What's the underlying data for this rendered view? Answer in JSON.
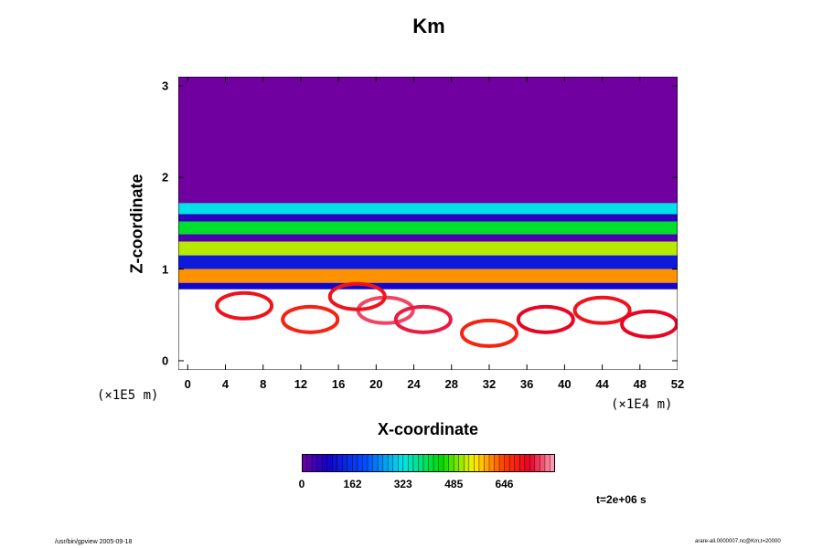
{
  "chart_data": {
    "type": "heatmap",
    "title": "Km",
    "xlabel": "X-coordinate",
    "ylabel": "Z-coordinate",
    "x_unit": "(×1E4 m)",
    "y_unit": "(×1E5 m)",
    "x_ticks": [
      "0",
      "4",
      "8",
      "12",
      "16",
      "20",
      "24",
      "28",
      "32",
      "36",
      "40",
      "44",
      "48",
      "52"
    ],
    "y_ticks": [
      "0",
      "1",
      "2",
      "3"
    ],
    "xlim": [
      -1,
      52
    ],
    "ylim": [
      -0.1,
      3.1
    ],
    "colorbar": {
      "ticks": [
        "0",
        "162",
        "323",
        "485",
        "646"
      ],
      "range": [
        0,
        808
      ]
    },
    "time_label": "t=2e+06 s",
    "bands": [
      {
        "z_min": 1.72,
        "z_max": 3.1,
        "value": 0
      },
      {
        "z_min": 1.6,
        "z_max": 1.72,
        "value": 320
      },
      {
        "z_min": 1.52,
        "z_max": 1.6,
        "value": 60
      },
      {
        "z_min": 1.38,
        "z_max": 1.52,
        "value": 420
      },
      {
        "z_min": 1.3,
        "z_max": 1.38,
        "value": 30
      },
      {
        "z_min": 1.15,
        "z_max": 1.3,
        "value": 520
      },
      {
        "z_min": 1.0,
        "z_max": 1.15,
        "value": 120
      },
      {
        "z_min": 0.85,
        "z_max": 1.0,
        "value": 600
      },
      {
        "z_min": 0.78,
        "z_max": 0.85,
        "value": 90
      }
    ],
    "features": [
      {
        "x": 21,
        "z": 0.55,
        "value": 760
      },
      {
        "x": 18,
        "z": 0.7,
        "value": 700
      },
      {
        "x": 25,
        "z": 0.45,
        "value": 740
      },
      {
        "x": 38,
        "z": 0.45,
        "value": 720
      },
      {
        "x": 44,
        "z": 0.55,
        "value": 700
      },
      {
        "x": 49,
        "z": 0.4,
        "value": 720
      },
      {
        "x": 6,
        "z": 0.6,
        "value": 700
      },
      {
        "x": 13,
        "z": 0.45,
        "value": 680
      },
      {
        "x": 32,
        "z": 0.3,
        "value": 680
      }
    ]
  },
  "footer": {
    "left": "/usr/bin/gpview 2005-09-18",
    "right": "arare-all.0000007.nc@Km,t=20000"
  }
}
